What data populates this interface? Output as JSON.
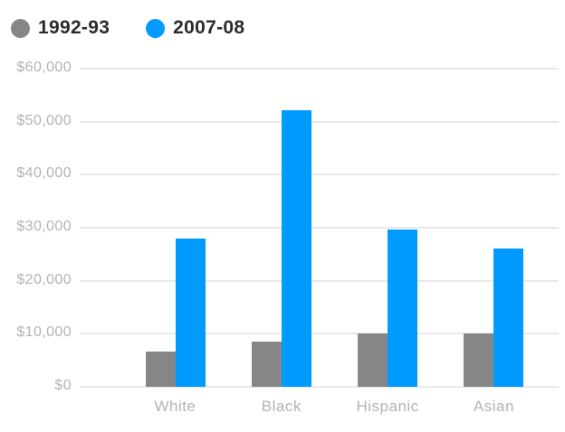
{
  "chart_data": {
    "type": "bar",
    "title": "",
    "xlabel": "",
    "ylabel": "",
    "categories": [
      "White",
      "Black",
      "Hispanic",
      "Asian"
    ],
    "series": [
      {
        "name": "1992-93",
        "color": "#868686",
        "values": [
          6700,
          8500,
          10000,
          10000
        ]
      },
      {
        "name": "2007-08",
        "color": "#009bff",
        "values": [
          28000,
          52200,
          29700,
          26000
        ]
      }
    ],
    "ylim": [
      0,
      60000
    ],
    "ytick_step": 10000,
    "ytick_labels": [
      "$0",
      "$10,000",
      "$20,000",
      "$30,000",
      "$40,000",
      "$50,000",
      "$60,000"
    ],
    "grid": "horizontal",
    "legend_position": "top-left",
    "colors": {
      "grid_line": "#e9e9e9",
      "axis_label_text": "#b3b3b3",
      "legend_text": "#2b2b2b",
      "background": "#ffffff"
    }
  }
}
